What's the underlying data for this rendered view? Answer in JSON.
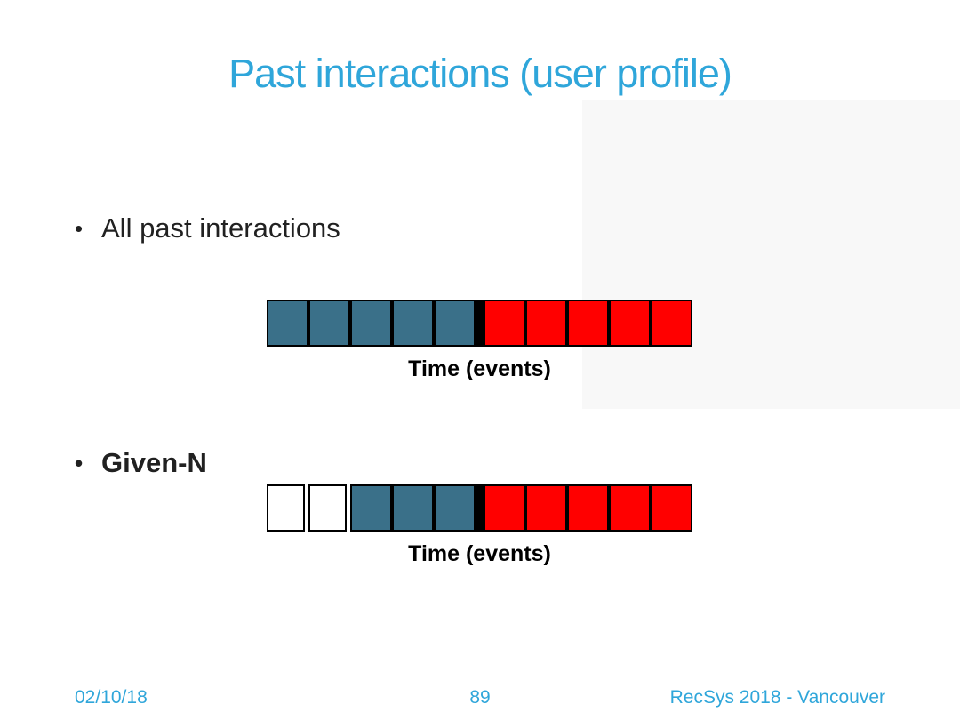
{
  "slide": {
    "title": "Past interactions (user profile)",
    "bullets": [
      {
        "marker": "•",
        "label": "All past interactions"
      },
      {
        "marker": "•",
        "label": "Given-N"
      }
    ],
    "footer": {
      "date": "02/10/18",
      "page_number": "89",
      "venue": "RecSys 2018 - Vancouver"
    }
  },
  "theme": {
    "accent_color": "#2FA6DA",
    "text_color": "#212121",
    "cell_colors": {
      "train": "#3A7089",
      "test": "#FF0000",
      "excluded": "#FFFFFF",
      "divider": "#000000"
    }
  },
  "diagram": {
    "bars": [
      {
        "name": "all-past-interactions",
        "axis_label": "Time (events)",
        "cells": [
          "train",
          "train",
          "train",
          "train",
          "train",
          "divider",
          "test",
          "test",
          "test",
          "test",
          "test"
        ]
      },
      {
        "name": "given-n",
        "axis_label": "Time (events)",
        "cells": [
          "excluded",
          "excluded",
          "train",
          "train",
          "train",
          "divider",
          "test",
          "test",
          "test",
          "test",
          "test"
        ]
      }
    ]
  }
}
